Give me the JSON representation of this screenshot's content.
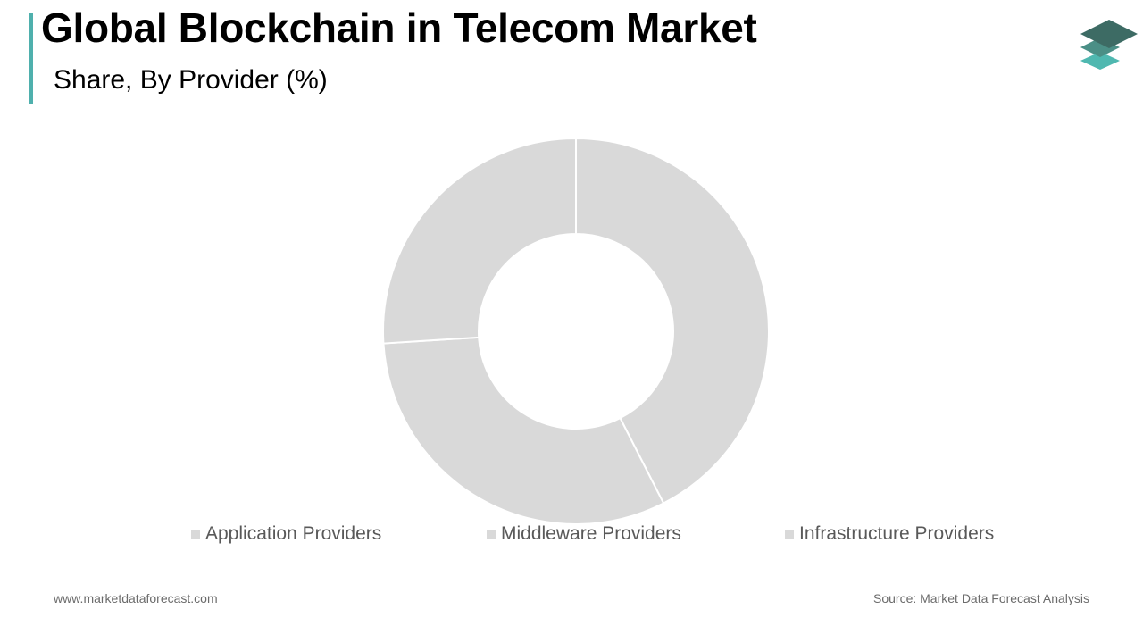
{
  "header": {
    "title": "Global Blockchain in Telecom Market",
    "subtitle": "Share, By Provider (%)"
  },
  "colors": {
    "accent": "#4fb0ad",
    "slice_fill": "#d9d9d9",
    "slice_stroke": "#ffffff",
    "logo_dark": "#3d6b64",
    "logo_mid": "#4b8f86",
    "logo_light": "#4fb8b0"
  },
  "logo_icon": "stacked-layers-icon",
  "chart_data": {
    "type": "pie",
    "style": "donut",
    "categories": [
      "Application Providers",
      "Middleware Providers",
      "Infrastructure Providers"
    ],
    "values": [
      42.5,
      31.5,
      26.0
    ],
    "unit": "%",
    "legend_position": "bottom",
    "title": "Global Blockchain in Telecom Market",
    "subtitle": "Share, By Provider (%)"
  },
  "footer": {
    "website": "www.marketdataforecast.com",
    "source": "Source: Market Data Forecast Analysis"
  }
}
